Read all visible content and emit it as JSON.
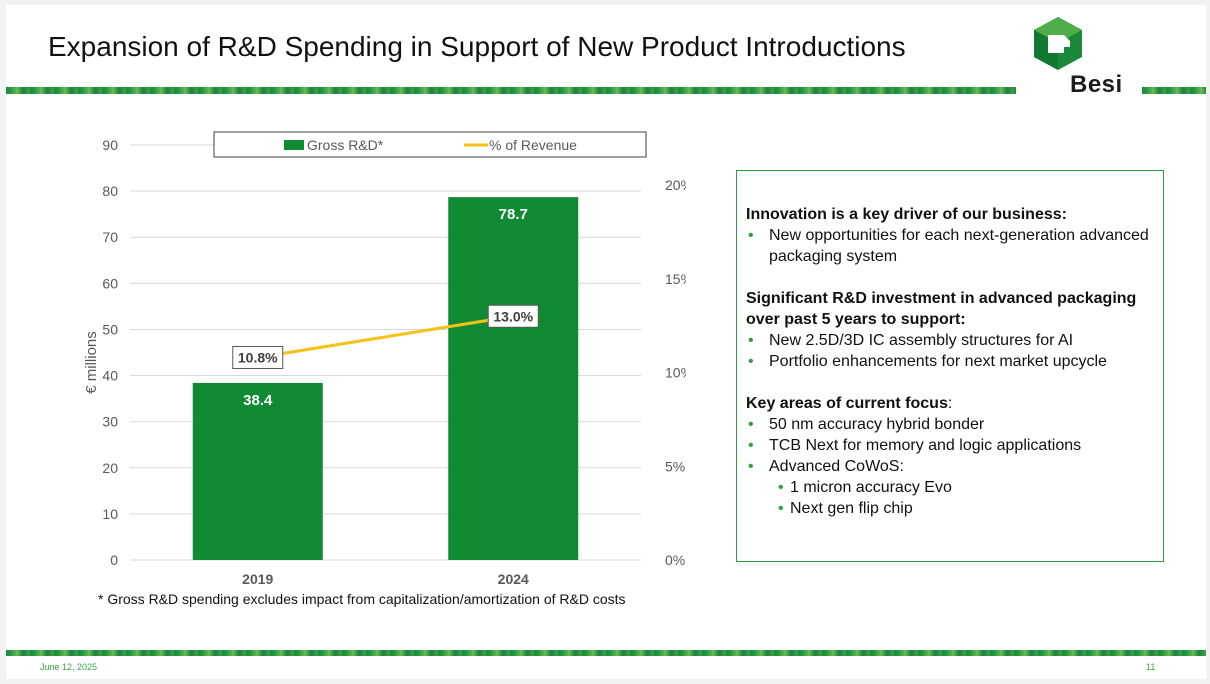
{
  "slide": {
    "title": "Expansion of R&D Spending in Support of New Product Introductions",
    "logo_text": "Besi",
    "footer_date": "June 12, 2025",
    "page_number": "11",
    "footnote": "* Gross R&D spending excludes impact from capitalization/amortization of R&D costs"
  },
  "colors": {
    "brand_green": "#1a8a3a",
    "bar_green": "#118a34",
    "line_yellow": "#f5c218"
  },
  "chart_data": {
    "type": "bar",
    "categories": [
      "2019",
      "2024"
    ],
    "series": [
      {
        "name": "Gross R&D*",
        "type": "bar",
        "axis": "left",
        "values": [
          38.4,
          78.7
        ],
        "labels": [
          "38.4",
          "78.7"
        ]
      },
      {
        "name": "% of Revenue",
        "type": "line",
        "axis": "right",
        "values": [
          10.8,
          13.0
        ],
        "labels": [
          "10.8%",
          "13.0%"
        ]
      }
    ],
    "ylabel": "€ millions",
    "ylim": [
      0,
      90
    ],
    "yticks": [
      "0",
      "10",
      "20",
      "30",
      "40",
      "50",
      "60",
      "70",
      "80",
      "90"
    ],
    "y2lim": [
      0,
      20
    ],
    "y2ticks": [
      "0%",
      "5%",
      "10%",
      "15%",
      "20%"
    ],
    "legend": "top",
    "grid": true
  },
  "focus": {
    "sections": [
      {
        "heading": "Innovation is a key driver of our business:",
        "suffix": "",
        "items": [
          {
            "text": "New opportunities for each next-generation advanced packaging system",
            "sub": []
          }
        ]
      },
      {
        "heading": "Significant R&D investment in advanced packaging over past 5 years to support:",
        "suffix": "",
        "items": [
          {
            "text": "New 2.5D/3D IC assembly structures for AI",
            "sub": []
          },
          {
            "text": "Portfolio enhancements for next market upcycle",
            "sub": []
          }
        ]
      },
      {
        "heading": "Key areas of current focus",
        "suffix": ":",
        "items": [
          {
            "text": "50 nm accuracy hybrid bonder",
            "sub": []
          },
          {
            "text": "TCB Next for memory and logic applications",
            "sub": []
          },
          {
            "text": "Advanced CoWoS:",
            "sub": [
              "1 micron accuracy Evo",
              "Next gen flip chip"
            ]
          }
        ]
      }
    ]
  }
}
